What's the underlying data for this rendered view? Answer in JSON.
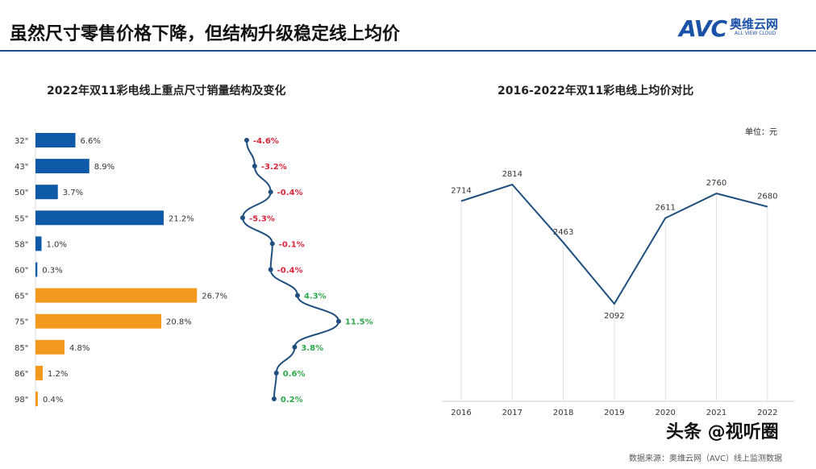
{
  "header": {
    "title": "虽然尺寸零售价格下降，但结构升级稳定线上均价",
    "logo_text": "AVC",
    "logo_cn": "奥维云网",
    "logo_en": "ALL VIEW CLOUD"
  },
  "watermark": "AVC 奥维云网 ALL VIEW CLOUD",
  "footer": {
    "source": "数据来源：奥维云网（AVC）线上监测数据",
    "overlay": "头条 @视听圈"
  },
  "colors": {
    "blue": "#0f5aa8",
    "orange": "#f39a1e",
    "line": "#1f4f7e",
    "neg": "#d9263a",
    "pos": "#2ea84a",
    "grid": "#e0e0e0"
  },
  "chart_data": [
    {
      "type": "bar",
      "title": "2022年双11彩电线上重点尺寸销量结构及变化",
      "categories": [
        "32\"",
        "43\"",
        "50\"",
        "55\"",
        "58\"",
        "60\"",
        "65\"",
        "75\"",
        "85\"",
        "86\"",
        "98\""
      ],
      "values": [
        6.6,
        8.9,
        3.7,
        21.2,
        1.0,
        0.3,
        26.7,
        20.8,
        4.8,
        1.2,
        0.4
      ],
      "value_labels": [
        "6.6%",
        "8.9%",
        "3.7%",
        "21.2%",
        "1.0%",
        "0.3%",
        "26.7%",
        "20.8%",
        "4.8%",
        "1.2%",
        "0.4%"
      ],
      "bar_colors": [
        "blue",
        "blue",
        "blue",
        "blue",
        "blue",
        "blue",
        "orange",
        "orange",
        "orange",
        "orange",
        "orange"
      ],
      "change": [
        -4.6,
        -3.2,
        -0.4,
        -5.3,
        -0.1,
        -0.4,
        4.3,
        11.5,
        3.8,
        0.6,
        0.2
      ],
      "change_labels": [
        "-4.6%",
        "-3.2%",
        "-0.4%",
        "-5.3%",
        "-0.1%",
        "-0.4%",
        "4.3%",
        "11.5%",
        "3.8%",
        "0.6%",
        "0.2%"
      ]
    },
    {
      "type": "line",
      "title": "2016-2022年双11彩电线上均价对比",
      "unit": "单位：元",
      "x": [
        "2016",
        "2017",
        "2018",
        "2019",
        "2020",
        "2021",
        "2022"
      ],
      "values": [
        2714,
        2814,
        2463,
        2092,
        2611,
        2760,
        2680
      ]
    }
  ]
}
